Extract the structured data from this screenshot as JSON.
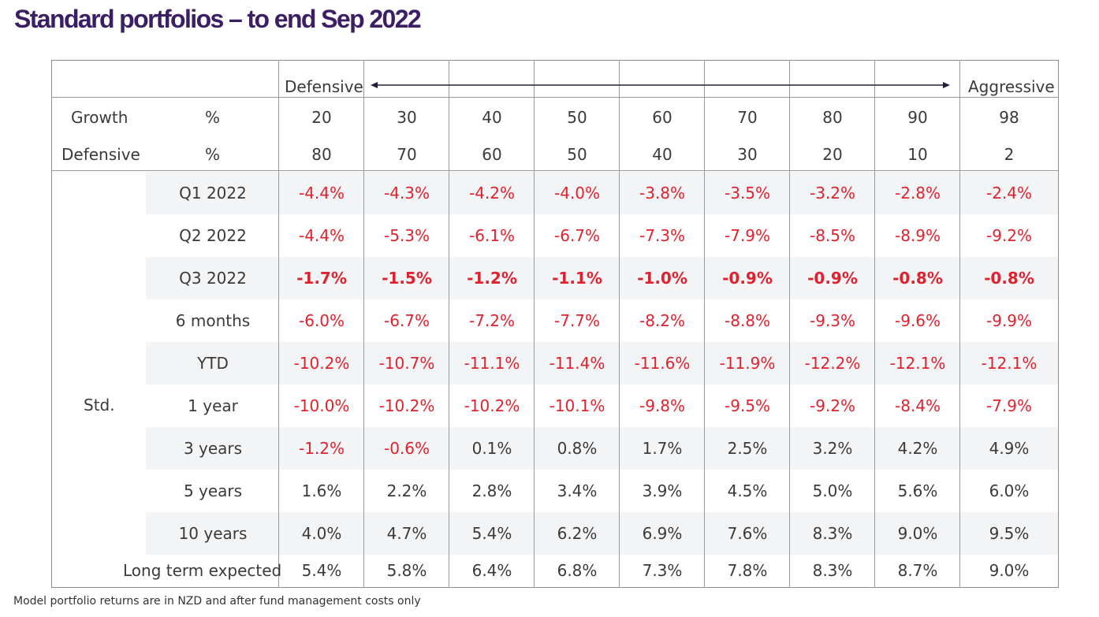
{
  "title": "Standard portfolios – to end Sep 2022",
  "header": {
    "defensive_label": "Defensive",
    "aggressive_label": "Aggressive",
    "growth_label": "Growth",
    "growth_unit": "%",
    "defensive_row_label": "Defensive",
    "defensive_unit": "%",
    "growth": [
      "20",
      "30",
      "40",
      "50",
      "60",
      "70",
      "80",
      "90",
      "98"
    ],
    "defensive": [
      "80",
      "70",
      "60",
      "50",
      "40",
      "30",
      "20",
      "10",
      "2"
    ]
  },
  "group_label": "Std.",
  "rows": [
    {
      "label": "Q1 2022",
      "values": [
        "-4.4%",
        "-4.3%",
        "-4.2%",
        "-4.0%",
        "-3.8%",
        "-3.5%",
        "-3.2%",
        "-2.8%",
        "-2.4%"
      ]
    },
    {
      "label": "Q2 2022",
      "values": [
        "-4.4%",
        "-5.3%",
        "-6.1%",
        "-6.7%",
        "-7.3%",
        "-7.9%",
        "-8.5%",
        "-8.9%",
        "-9.2%"
      ]
    },
    {
      "label": "Q3 2022",
      "values": [
        "-1.7%",
        "-1.5%",
        "-1.2%",
        "-1.1%",
        "-1.0%",
        "-0.9%",
        "-0.9%",
        "-0.8%",
        "-0.8%"
      ]
    },
    {
      "label": "6 months",
      "values": [
        "-6.0%",
        "-6.7%",
        "-7.2%",
        "-7.7%",
        "-8.2%",
        "-8.8%",
        "-9.3%",
        "-9.6%",
        "-9.9%"
      ]
    },
    {
      "label": "YTD",
      "values": [
        "-10.2%",
        "-10.7%",
        "-11.1%",
        "-11.4%",
        "-11.6%",
        "-11.9%",
        "-12.2%",
        "-12.1%",
        "-12.1%"
      ]
    },
    {
      "label": "1 year",
      "values": [
        "-10.0%",
        "-10.2%",
        "-10.2%",
        "-10.1%",
        "-9.8%",
        "-9.5%",
        "-9.2%",
        "-8.4%",
        "-7.9%"
      ]
    },
    {
      "label": "3 years",
      "values": [
        "-1.2%",
        "-0.6%",
        "0.1%",
        "0.8%",
        "1.7%",
        "2.5%",
        "3.2%",
        "4.2%",
        "4.9%"
      ]
    },
    {
      "label": "5 years",
      "values": [
        "1.6%",
        "2.2%",
        "2.8%",
        "3.4%",
        "3.9%",
        "4.5%",
        "5.0%",
        "5.6%",
        "6.0%"
      ]
    },
    {
      "label": "10 years",
      "values": [
        "4.0%",
        "4.7%",
        "5.4%",
        "6.2%",
        "6.9%",
        "7.6%",
        "8.3%",
        "9.0%",
        "9.5%"
      ]
    }
  ],
  "long_term": {
    "label": "Long term expected",
    "values": [
      "5.4%",
      "5.8%",
      "6.4%",
      "6.8%",
      "7.3%",
      "7.8%",
      "8.3%",
      "8.7%",
      "9.0%"
    ]
  },
  "footnote": "Model portfolio returns are in NZD and after fund management costs only",
  "colors": {
    "title": "#3b1e63",
    "negative": "#e0222e",
    "text": "#3a3a3a",
    "band": "#f3f4f6"
  }
}
